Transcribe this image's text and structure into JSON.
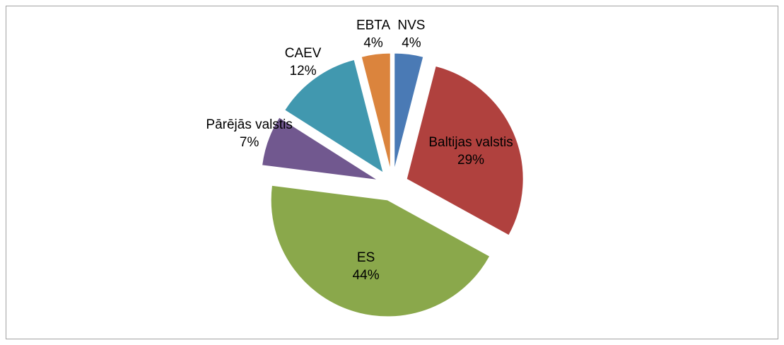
{
  "chart_data": {
    "type": "pie",
    "categories": [
      "NVS",
      "Baltijas valstis",
      "ES",
      "Pārējās valstis",
      "CAEV",
      "EBTA"
    ],
    "values": [
      4,
      29,
      44,
      7,
      12,
      4
    ],
    "value_labels": [
      "4%",
      "29%",
      "44%",
      "7%",
      "12%",
      "4%"
    ],
    "colors": [
      "#4a7ab5",
      "#b0413e",
      "#8aa84b",
      "#71588f",
      "#4198af",
      "#db843d"
    ],
    "exploded": true
  }
}
